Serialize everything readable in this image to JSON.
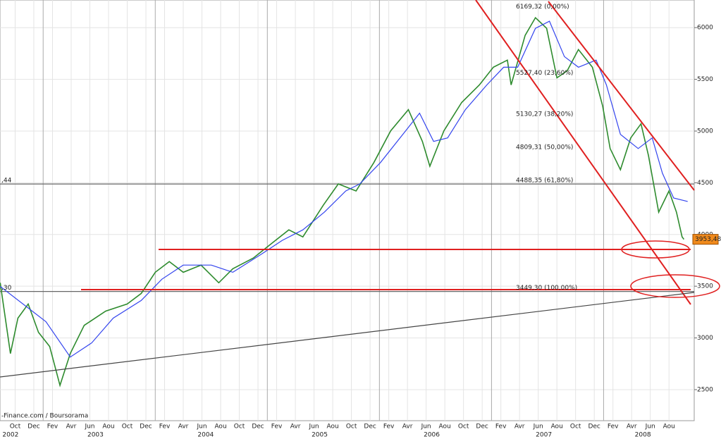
{
  "chart_data": {
    "type": "line",
    "source": "-Finance.com / Boursorama",
    "xlim": [
      7.38,
      81.7
    ],
    "ylim": [
      2200,
      6267
    ],
    "yticks": [
      2500,
      3000,
      3500,
      4000,
      4500,
      5000,
      5500,
      6000
    ],
    "xticks": [
      {
        "value": 9,
        "label": "Oct"
      },
      {
        "value": 11,
        "label": "Dec"
      },
      {
        "value": 13,
        "label": "Fev"
      },
      {
        "value": 15,
        "label": "Avr"
      },
      {
        "value": 17,
        "label": "Jun"
      },
      {
        "value": 19,
        "label": "Aou"
      },
      {
        "value": 21,
        "label": "Oct"
      },
      {
        "value": 23,
        "label": "Dec"
      },
      {
        "value": 25,
        "label": "Fev"
      },
      {
        "value": 27,
        "label": "Avr"
      },
      {
        "value": 29,
        "label": "Jun"
      },
      {
        "value": 31,
        "label": "Aou"
      },
      {
        "value": 33,
        "label": "Oct"
      },
      {
        "value": 35,
        "label": "Dec"
      },
      {
        "value": 37,
        "label": "Fev"
      },
      {
        "value": 39,
        "label": "Avr"
      },
      {
        "value": 41,
        "label": "Jun"
      },
      {
        "value": 43,
        "label": "Aou"
      },
      {
        "value": 45,
        "label": "Oct"
      },
      {
        "value": 47,
        "label": "Dec"
      },
      {
        "value": 49,
        "label": "Fev"
      },
      {
        "value": 51,
        "label": "Avr"
      },
      {
        "value": 53,
        "label": "Jun"
      },
      {
        "value": 55,
        "label": "Aou"
      },
      {
        "value": 57,
        "label": "Oct"
      },
      {
        "value": 59,
        "label": "Dec"
      },
      {
        "value": 61,
        "label": "Fev"
      },
      {
        "value": 63,
        "label": "Avr"
      },
      {
        "value": 65,
        "label": "Jun"
      },
      {
        "value": 67,
        "label": "Aou"
      },
      {
        "value": 69,
        "label": "Oct"
      },
      {
        "value": 71,
        "label": "Dec"
      },
      {
        "value": 73,
        "label": "Fev"
      },
      {
        "value": 75,
        "label": "Avr"
      },
      {
        "value": 77,
        "label": "Jun"
      },
      {
        "value": 79,
        "label": "Aou"
      }
    ],
    "year_labels": [
      {
        "value": 8.5,
        "label": "2002"
      },
      {
        "value": 17.6,
        "label": "2003"
      },
      {
        "value": 29.4,
        "label": "2004"
      },
      {
        "value": 41.6,
        "label": "2005"
      },
      {
        "value": 53.6,
        "label": "2006"
      },
      {
        "value": 65.6,
        "label": "2007"
      },
      {
        "value": 76.2,
        "label": "2008"
      }
    ],
    "year_lines": [
      12,
      24,
      36,
      48,
      60,
      72
    ],
    "grid": true,
    "series": [
      {
        "color": "#2e8b2e",
        "x": [
          7.4,
          8.5,
          9.3,
          10.4,
          11.5,
          12.7,
          13.8,
          14.9,
          16.4,
          18.7,
          21,
          22.5,
          24,
          25.5,
          27,
          28.9,
          30.8,
          32.3,
          34.5,
          36.4,
          38.3,
          39.8,
          42,
          43.6,
          45.5,
          47.4,
          49.2,
          51.1,
          52.6,
          53.4,
          54.9,
          56.8,
          58.7,
          60.2,
          61.7,
          62.1,
          63.6,
          64.7,
          65.9,
          67,
          68.1,
          69.3,
          70.8,
          71.9,
          72.7,
          73.8,
          74.9,
          76,
          76.8,
          77.9,
          79,
          79.8,
          80.4,
          80.6
        ],
        "values": [
          3533,
          2849,
          3191,
          3328,
          3054,
          2917,
          2541,
          2849,
          3122,
          3259,
          3328,
          3430,
          3635,
          3738,
          3635,
          3704,
          3533,
          3669,
          3772,
          3909,
          4045,
          3977,
          4284,
          4489,
          4421,
          4695,
          5002,
          5207,
          4900,
          4660,
          5002,
          5276,
          5446,
          5617,
          5686,
          5446,
          5925,
          6096,
          5993,
          5515,
          5583,
          5788,
          5617,
          5241,
          4831,
          4626,
          4934,
          5070,
          4763,
          4216,
          4421,
          4216,
          3977,
          3953.48
        ]
      },
      {
        "color": "#3344ee",
        "x": [
          7.4,
          12.3,
          14.9,
          17.2,
          19.5,
          22.5,
          24.7,
          27,
          30,
          32.3,
          35.3,
          37.6,
          39.8,
          42.1,
          44.4,
          45.9,
          48.1,
          50.8,
          52.3,
          53.8,
          55.3,
          57.2,
          59.5,
          61.3,
          62.8,
          64.7,
          66.2,
          67.8,
          69.3,
          71.2,
          72.3,
          73.8,
          75.7,
          77.2,
          78.3,
          79.5,
          81
        ],
        "values": [
          3498,
          3157,
          2815,
          2952,
          3191,
          3362,
          3567,
          3704,
          3704,
          3635,
          3806,
          3943,
          4045,
          4216,
          4421,
          4489,
          4695,
          5002,
          5173,
          4900,
          4934,
          5207,
          5446,
          5617,
          5617,
          5993,
          6062,
          5720,
          5617,
          5686,
          5446,
          4968,
          4831,
          4934,
          4592,
          4353,
          4319
        ]
      }
    ],
    "fib_levels": [
      {
        "value": 6169.32,
        "label": "6169,32 (0,00%)"
      },
      {
        "value": 5527.4,
        "label": "5527,40 (23,60%)"
      },
      {
        "value": 5130.27,
        "label": "5130,27 (38,20%)"
      },
      {
        "value": 4809.31,
        "label": "4809,31 (50,00%)"
      },
      {
        "value": 4488.35,
        "label": "4488,35 (61,80%)",
        "line": true,
        "left_label": ",44"
      },
      {
        "value": 3449.3,
        "label": "3449,30 (100,00%)",
        "line": true,
        "left_label": ",30"
      }
    ],
    "last_price": {
      "value": 3953.48,
      "label": "3953,48"
    }
  }
}
